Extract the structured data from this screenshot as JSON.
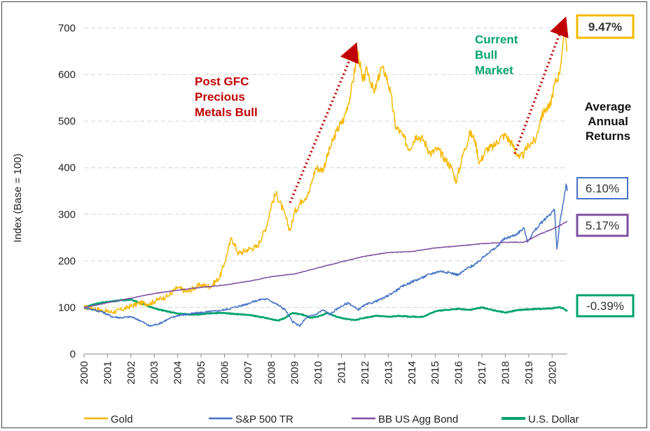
{
  "chart_data": {
    "type": "line",
    "ylabel": "Index (Base = 100)",
    "ylim": [
      0,
      700
    ],
    "yticks": [
      "0",
      "100",
      "200",
      "300",
      "400",
      "500",
      "600",
      "700"
    ],
    "xlim": [
      2000.0,
      2020.65
    ],
    "xticks": [
      "2000",
      "2001",
      "2002",
      "2003",
      "2004",
      "2005",
      "2006",
      "2007",
      "2008",
      "2009",
      "2010",
      "2011",
      "2012",
      "2013",
      "2014",
      "2015",
      "2016",
      "2017",
      "2018",
      "2019",
      "2020"
    ],
    "grid": "horizontal dashed",
    "legend_position": "bottom",
    "series": [
      {
        "name": "Gold",
        "color": "#F5B800",
        "return_label": "9.47%",
        "points": [
          [
            2000.0,
            100
          ],
          [
            2000.4,
            98
          ],
          [
            2000.8,
            93
          ],
          [
            2001.2,
            90
          ],
          [
            2001.6,
            95
          ],
          [
            2002.0,
            103
          ],
          [
            2002.4,
            110
          ],
          [
            2002.8,
            108
          ],
          [
            2003.2,
            118
          ],
          [
            2003.6,
            125
          ],
          [
            2004.0,
            143
          ],
          [
            2004.4,
            133
          ],
          [
            2004.8,
            145
          ],
          [
            2005.0,
            148
          ],
          [
            2005.4,
            145
          ],
          [
            2005.8,
            165
          ],
          [
            2006.0,
            195
          ],
          [
            2006.3,
            250
          ],
          [
            2006.6,
            215
          ],
          [
            2007.0,
            225
          ],
          [
            2007.4,
            230
          ],
          [
            2007.8,
            275
          ],
          [
            2008.0,
            320
          ],
          [
            2008.2,
            345
          ],
          [
            2008.5,
            310
          ],
          [
            2008.8,
            265
          ],
          [
            2009.0,
            305
          ],
          [
            2009.3,
            330
          ],
          [
            2009.6,
            345
          ],
          [
            2009.9,
            400
          ],
          [
            2010.2,
            395
          ],
          [
            2010.5,
            440
          ],
          [
            2010.8,
            480
          ],
          [
            2011.1,
            505
          ],
          [
            2011.4,
            560
          ],
          [
            2011.6,
            620
          ],
          [
            2011.7,
            650
          ],
          [
            2011.9,
            585
          ],
          [
            2012.1,
            610
          ],
          [
            2012.4,
            560
          ],
          [
            2012.7,
            615
          ],
          [
            2012.9,
            600
          ],
          [
            2013.1,
            560
          ],
          [
            2013.3,
            490
          ],
          [
            2013.6,
            470
          ],
          [
            2013.9,
            440
          ],
          [
            2014.2,
            470
          ],
          [
            2014.5,
            460
          ],
          [
            2014.8,
            430
          ],
          [
            2015.1,
            440
          ],
          [
            2015.4,
            420
          ],
          [
            2015.7,
            400
          ],
          [
            2015.9,
            370
          ],
          [
            2016.2,
            430
          ],
          [
            2016.5,
            475
          ],
          [
            2016.7,
            460
          ],
          [
            2016.9,
            410
          ],
          [
            2017.2,
            440
          ],
          [
            2017.5,
            445
          ],
          [
            2017.8,
            465
          ],
          [
            2018.0,
            470
          ],
          [
            2018.3,
            450
          ],
          [
            2018.6,
            420
          ],
          [
            2018.8,
            430
          ],
          [
            2019.0,
            450
          ],
          [
            2019.3,
            460
          ],
          [
            2019.5,
            505
          ],
          [
            2019.7,
            525
          ],
          [
            2019.9,
            530
          ],
          [
            2020.1,
            580
          ],
          [
            2020.3,
            600
          ],
          [
            2020.45,
            660
          ],
          [
            2020.55,
            690
          ],
          [
            2020.65,
            650
          ]
        ]
      },
      {
        "name": "S&P 500 TR",
        "color": "#4472C4",
        "return_label": "6.10%",
        "points": [
          [
            2000.0,
            100
          ],
          [
            2000.4,
            95
          ],
          [
            2000.8,
            90
          ],
          [
            2001.2,
            80
          ],
          [
            2001.6,
            78
          ],
          [
            2002.0,
            80
          ],
          [
            2002.4,
            72
          ],
          [
            2002.8,
            60
          ],
          [
            2003.2,
            65
          ],
          [
            2003.6,
            75
          ],
          [
            2004.0,
            83
          ],
          [
            2004.4,
            85
          ],
          [
            2004.8,
            88
          ],
          [
            2005.2,
            90
          ],
          [
            2005.6,
            92
          ],
          [
            2006.0,
            95
          ],
          [
            2006.4,
            100
          ],
          [
            2006.8,
            105
          ],
          [
            2007.2,
            112
          ],
          [
            2007.6,
            118
          ],
          [
            2007.9,
            117
          ],
          [
            2008.2,
            108
          ],
          [
            2008.6,
            95
          ],
          [
            2008.9,
            70
          ],
          [
            2009.2,
            60
          ],
          [
            2009.5,
            78
          ],
          [
            2009.9,
            85
          ],
          [
            2010.2,
            95
          ],
          [
            2010.5,
            85
          ],
          [
            2010.9,
            100
          ],
          [
            2011.3,
            110
          ],
          [
            2011.7,
            95
          ],
          [
            2012.0,
            105
          ],
          [
            2012.4,
            112
          ],
          [
            2012.8,
            120
          ],
          [
            2013.2,
            132
          ],
          [
            2013.6,
            145
          ],
          [
            2014.0,
            155
          ],
          [
            2014.4,
            163
          ],
          [
            2014.8,
            172
          ],
          [
            2015.2,
            178
          ],
          [
            2015.6,
            175
          ],
          [
            2016.0,
            170
          ],
          [
            2016.4,
            185
          ],
          [
            2016.8,
            195
          ],
          [
            2017.2,
            215
          ],
          [
            2017.6,
            228
          ],
          [
            2017.9,
            245
          ],
          [
            2018.1,
            250
          ],
          [
            2018.4,
            255
          ],
          [
            2018.8,
            270
          ],
          [
            2018.95,
            240
          ],
          [
            2019.2,
            262
          ],
          [
            2019.6,
            285
          ],
          [
            2019.9,
            300
          ],
          [
            2020.1,
            310
          ],
          [
            2020.2,
            225
          ],
          [
            2020.35,
            290
          ],
          [
            2020.5,
            330
          ],
          [
            2020.6,
            365
          ],
          [
            2020.65,
            350
          ]
        ]
      },
      {
        "name": "BB US Agg Bond",
        "color": "#7E4FA2",
        "return_label": "5.17%",
        "points": [
          [
            2000.0,
            100
          ],
          [
            2001.0,
            110
          ],
          [
            2002.0,
            120
          ],
          [
            2003.0,
            130
          ],
          [
            2004.0,
            137
          ],
          [
            2005.0,
            143
          ],
          [
            2006.0,
            148
          ],
          [
            2007.0,
            156
          ],
          [
            2008.0,
            166
          ],
          [
            2009.0,
            172
          ],
          [
            2010.0,
            185
          ],
          [
            2011.0,
            198
          ],
          [
            2012.0,
            210
          ],
          [
            2013.0,
            218
          ],
          [
            2014.0,
            220
          ],
          [
            2015.0,
            228
          ],
          [
            2016.0,
            232
          ],
          [
            2017.0,
            237
          ],
          [
            2018.0,
            240
          ],
          [
            2018.8,
            240
          ],
          [
            2019.5,
            258
          ],
          [
            2020.0,
            268
          ],
          [
            2020.3,
            275
          ],
          [
            2020.65,
            285
          ]
        ]
      },
      {
        "name": "U.S. Dollar",
        "color": "#00A36C",
        "return_label": "-0.39%",
        "points": [
          [
            2000.0,
            100
          ],
          [
            2000.5,
            108
          ],
          [
            2001.0,
            112
          ],
          [
            2001.5,
            115
          ],
          [
            2002.0,
            117
          ],
          [
            2002.5,
            108
          ],
          [
            2003.0,
            98
          ],
          [
            2003.5,
            92
          ],
          [
            2004.0,
            87
          ],
          [
            2004.5,
            85
          ],
          [
            2005.0,
            85
          ],
          [
            2005.5,
            88
          ],
          [
            2006.0,
            88
          ],
          [
            2006.5,
            86
          ],
          [
            2007.0,
            84
          ],
          [
            2007.5,
            80
          ],
          [
            2008.0,
            75
          ],
          [
            2008.3,
            72
          ],
          [
            2008.6,
            78
          ],
          [
            2008.9,
            88
          ],
          [
            2009.3,
            85
          ],
          [
            2009.7,
            78
          ],
          [
            2010.0,
            80
          ],
          [
            2010.4,
            88
          ],
          [
            2010.8,
            80
          ],
          [
            2011.2,
            75
          ],
          [
            2011.6,
            73
          ],
          [
            2012.0,
            78
          ],
          [
            2012.5,
            82
          ],
          [
            2013.0,
            80
          ],
          [
            2013.5,
            82
          ],
          [
            2014.0,
            80
          ],
          [
            2014.5,
            80
          ],
          [
            2015.0,
            92
          ],
          [
            2015.5,
            95
          ],
          [
            2016.0,
            97
          ],
          [
            2016.5,
            95
          ],
          [
            2017.0,
            100
          ],
          [
            2017.5,
            94
          ],
          [
            2018.0,
            89
          ],
          [
            2018.5,
            94
          ],
          [
            2019.0,
            96
          ],
          [
            2019.5,
            97
          ],
          [
            2020.0,
            98
          ],
          [
            2020.3,
            101
          ],
          [
            2020.5,
            97
          ],
          [
            2020.65,
            92
          ]
        ]
      }
    ],
    "annotations": [
      {
        "text": [
          "Post GFC",
          "Precious",
          "Metals Bull"
        ],
        "color": "#C00000"
      },
      {
        "text": [
          "Current",
          "Bull",
          "Market"
        ],
        "color": "#00A36C"
      },
      {
        "text": [
          "Average",
          "Annual",
          "Returns"
        ],
        "color": "#111111"
      }
    ],
    "arrows": [
      {
        "from": [
          2008.8,
          325
        ],
        "to": [
          2011.5,
          650
        ]
      },
      {
        "from": [
          2018.4,
          430
        ],
        "to": [
          2020.45,
          705
        ]
      }
    ]
  }
}
